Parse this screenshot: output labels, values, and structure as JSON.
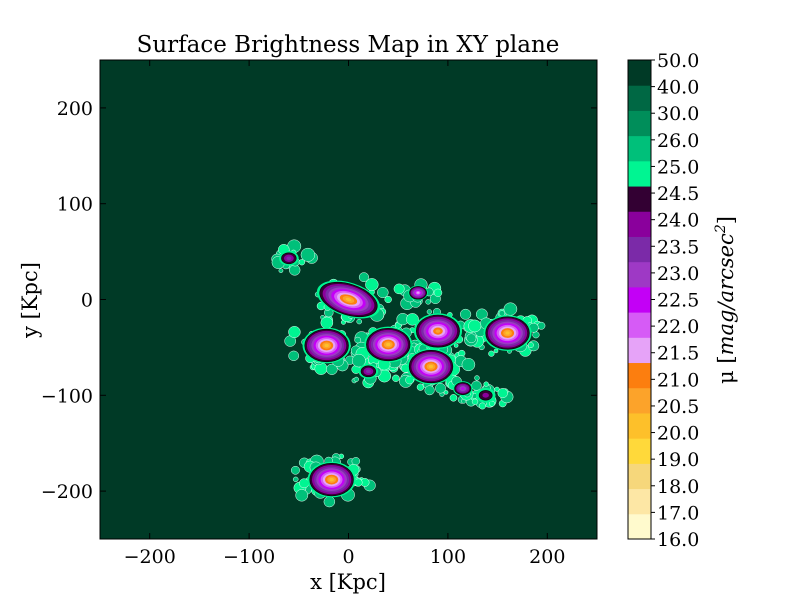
{
  "chart_data": {
    "type": "heatmap",
    "title": "Surface Brightness Map in XY plane",
    "xlabel": "x [Kpc]",
    "ylabel": "y [Kpc]",
    "xlim": [
      -250,
      250
    ],
    "ylim": [
      -250,
      250
    ],
    "xticks": [
      -200,
      -100,
      0,
      100,
      200
    ],
    "yticks": [
      -200,
      -100,
      0,
      100,
      200
    ],
    "xtick_labels": [
      "−200",
      "−100",
      "0",
      "100",
      "200"
    ],
    "ytick_labels": [
      "−200",
      "−100",
      "0",
      "100",
      "200"
    ],
    "background_color": "#003a26",
    "grid": false,
    "colorbar": {
      "label": "μ [mag/arcsec²]",
      "label_main": "μ [",
      "label_italic": "mag/arcsec",
      "label_sup": "2",
      "label_close": "]",
      "levels": [
        16.0,
        17.0,
        18.0,
        19.0,
        20.0,
        20.5,
        21.0,
        21.5,
        22.0,
        22.5,
        23.0,
        23.5,
        24.0,
        24.5,
        25.0,
        26.0,
        30.0,
        40.0,
        50.0
      ],
      "level_labels": [
        "16.0",
        "17.0",
        "18.0",
        "19.0",
        "20.0",
        "20.5",
        "21.0",
        "21.5",
        "22.0",
        "22.5",
        "23.0",
        "23.5",
        "24.0",
        "24.5",
        "25.0",
        "26.0",
        "30.0",
        "40.0",
        "50.0"
      ],
      "colors": [
        "#fffacd",
        "#fde7a5",
        "#f6d77b",
        "#ffd93a",
        "#fdc02a",
        "#fca32a",
        "#fc7e0f",
        "#e6a3f8",
        "#d65bf6",
        "#c300f6",
        "#9e39c5",
        "#7b2aa8",
        "#8a009c",
        "#330033",
        "#00f592",
        "#00c07a",
        "#008e5a",
        "#006844",
        "#003a26"
      ]
    },
    "components": [
      {
        "x": 0,
        "y": 0,
        "peak_mu": 20.0
      },
      {
        "x": 40,
        "y": -47,
        "peak_mu": 20.0
      },
      {
        "x": -22,
        "y": -48,
        "peak_mu": 20.0
      },
      {
        "x": 83,
        "y": -70,
        "peak_mu": 20.0
      },
      {
        "x": 160,
        "y": -35,
        "peak_mu": 20.0
      },
      {
        "x": 90,
        "y": -33,
        "peak_mu": 20.5
      },
      {
        "x": 70,
        "y": 7,
        "peak_mu": 21.5
      },
      {
        "x": -17,
        "y": -188,
        "peak_mu": 20.0
      },
      {
        "x": 115,
        "y": -93,
        "peak_mu": 22.5
      },
      {
        "x": -60,
        "y": 43,
        "peak_mu": 23.5
      },
      {
        "x": 20,
        "y": -75,
        "peak_mu": 23.5
      },
      {
        "x": 138,
        "y": -100,
        "peak_mu": 24.0
      }
    ]
  }
}
